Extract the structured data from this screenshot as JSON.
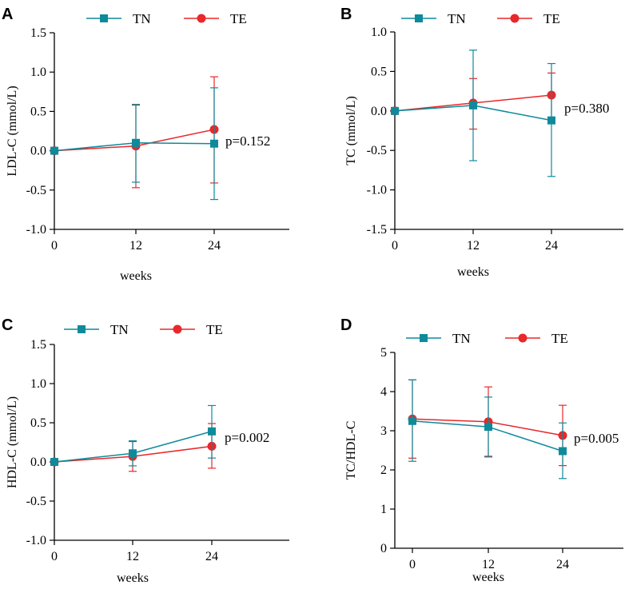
{
  "colors": {
    "tn": "#0F8A9B",
    "te": "#E8282A",
    "axis": "#000000"
  },
  "chart_data": [
    {
      "type": "line",
      "panel": "A",
      "title": "",
      "xlabel": "weeks",
      "ylabel": "LDL-C (mmol/L)",
      "x": [
        0,
        12,
        24
      ],
      "xticks": [
        "0",
        "12",
        "24"
      ],
      "ylim": [
        -1.0,
        1.5
      ],
      "yticks": [
        -1.0,
        -0.5,
        0.0,
        0.5,
        1.0,
        1.5
      ],
      "ytick_labels": [
        "-1.0",
        "-0.5",
        "0.0",
        "0.5",
        "1.0",
        "1.5"
      ],
      "legend": [
        "TN",
        "TE"
      ],
      "annotation": "p=0.152",
      "series": [
        {
          "name": "TN",
          "marker": "square",
          "values": [
            0.0,
            0.1,
            0.09
          ],
          "err_low": [
            0.0,
            -0.4,
            -0.62
          ],
          "err_high": [
            0.0,
            0.59,
            0.8
          ]
        },
        {
          "name": "TE",
          "marker": "circle",
          "values": [
            0.0,
            0.06,
            0.27
          ],
          "err_low": [
            0.0,
            -0.47,
            -0.41
          ],
          "err_high": [
            0.0,
            0.58,
            0.94
          ]
        }
      ]
    },
    {
      "type": "line",
      "panel": "B",
      "title": "",
      "xlabel": "weeks",
      "ylabel": "TC (mmol/L)",
      "x": [
        0,
        12,
        24
      ],
      "xticks": [
        "0",
        "12",
        "24"
      ],
      "ylim": [
        -1.5,
        1.0
      ],
      "yticks": [
        -1.5,
        -1.0,
        -0.5,
        0.0,
        0.5,
        1.0
      ],
      "ytick_labels": [
        "-1.5",
        "-1.0",
        "-0.5",
        "0.0",
        "0.5",
        "1.0"
      ],
      "legend": [
        "TN",
        "TE"
      ],
      "annotation": "p=0.380",
      "series": [
        {
          "name": "TN",
          "marker": "square",
          "values": [
            0.0,
            0.07,
            -0.12
          ],
          "err_low": [
            0.0,
            -0.63,
            -0.83
          ],
          "err_high": [
            0.0,
            0.77,
            0.6
          ]
        },
        {
          "name": "TE",
          "marker": "circle",
          "values": [
            0.0,
            0.1,
            0.2
          ],
          "err_low": [
            0.0,
            -0.23,
            -0.09
          ],
          "err_high": [
            0.0,
            0.41,
            0.48
          ]
        }
      ]
    },
    {
      "type": "line",
      "panel": "C",
      "title": "",
      "xlabel": "weeks",
      "ylabel": "HDL-C (mmol/L)",
      "x": [
        0,
        12,
        24
      ],
      "xticks": [
        "0",
        "12",
        "24"
      ],
      "ylim": [
        -1.0,
        1.5
      ],
      "yticks": [
        -1.0,
        -0.5,
        0.0,
        0.5,
        1.0,
        1.5
      ],
      "ytick_labels": [
        "-1.0",
        "-0.5",
        "0.0",
        "0.5",
        "1.0",
        "1.5"
      ],
      "legend": [
        "TN",
        "TE"
      ],
      "annotation": "p=0.002",
      "series": [
        {
          "name": "TN",
          "marker": "square",
          "values": [
            0.0,
            0.11,
            0.39
          ],
          "err_low": [
            0.0,
            -0.05,
            0.05
          ],
          "err_high": [
            0.0,
            0.27,
            0.72
          ]
        },
        {
          "name": "TE",
          "marker": "circle",
          "values": [
            0.0,
            0.07,
            0.2
          ],
          "err_low": [
            0.0,
            -0.12,
            -0.08
          ],
          "err_high": [
            0.0,
            0.26,
            0.49
          ]
        }
      ]
    },
    {
      "type": "line",
      "panel": "D",
      "title": "",
      "xlabel": "weeks",
      "ylabel": "TC/HDL-C",
      "x": [
        0,
        12,
        24
      ],
      "xticks": [
        "0",
        "12",
        "24"
      ],
      "ylim": [
        0,
        5
      ],
      "yticks": [
        0,
        1,
        2,
        3,
        4,
        5
      ],
      "ytick_labels": [
        "0",
        "1",
        "2",
        "3",
        "4",
        "5"
      ],
      "legend": [
        "TN",
        "TE"
      ],
      "annotation": "p=0.005",
      "series": [
        {
          "name": "TN",
          "marker": "square",
          "values": [
            3.25,
            3.1,
            2.48
          ],
          "err_low": [
            2.22,
            2.35,
            1.78
          ],
          "err_high": [
            4.3,
            3.86,
            3.2
          ]
        },
        {
          "name": "TE",
          "marker": "circle",
          "values": [
            3.3,
            3.23,
            2.88
          ],
          "err_low": [
            2.3,
            2.33,
            2.11
          ],
          "err_high": [
            4.3,
            4.12,
            3.65
          ]
        }
      ]
    }
  ]
}
